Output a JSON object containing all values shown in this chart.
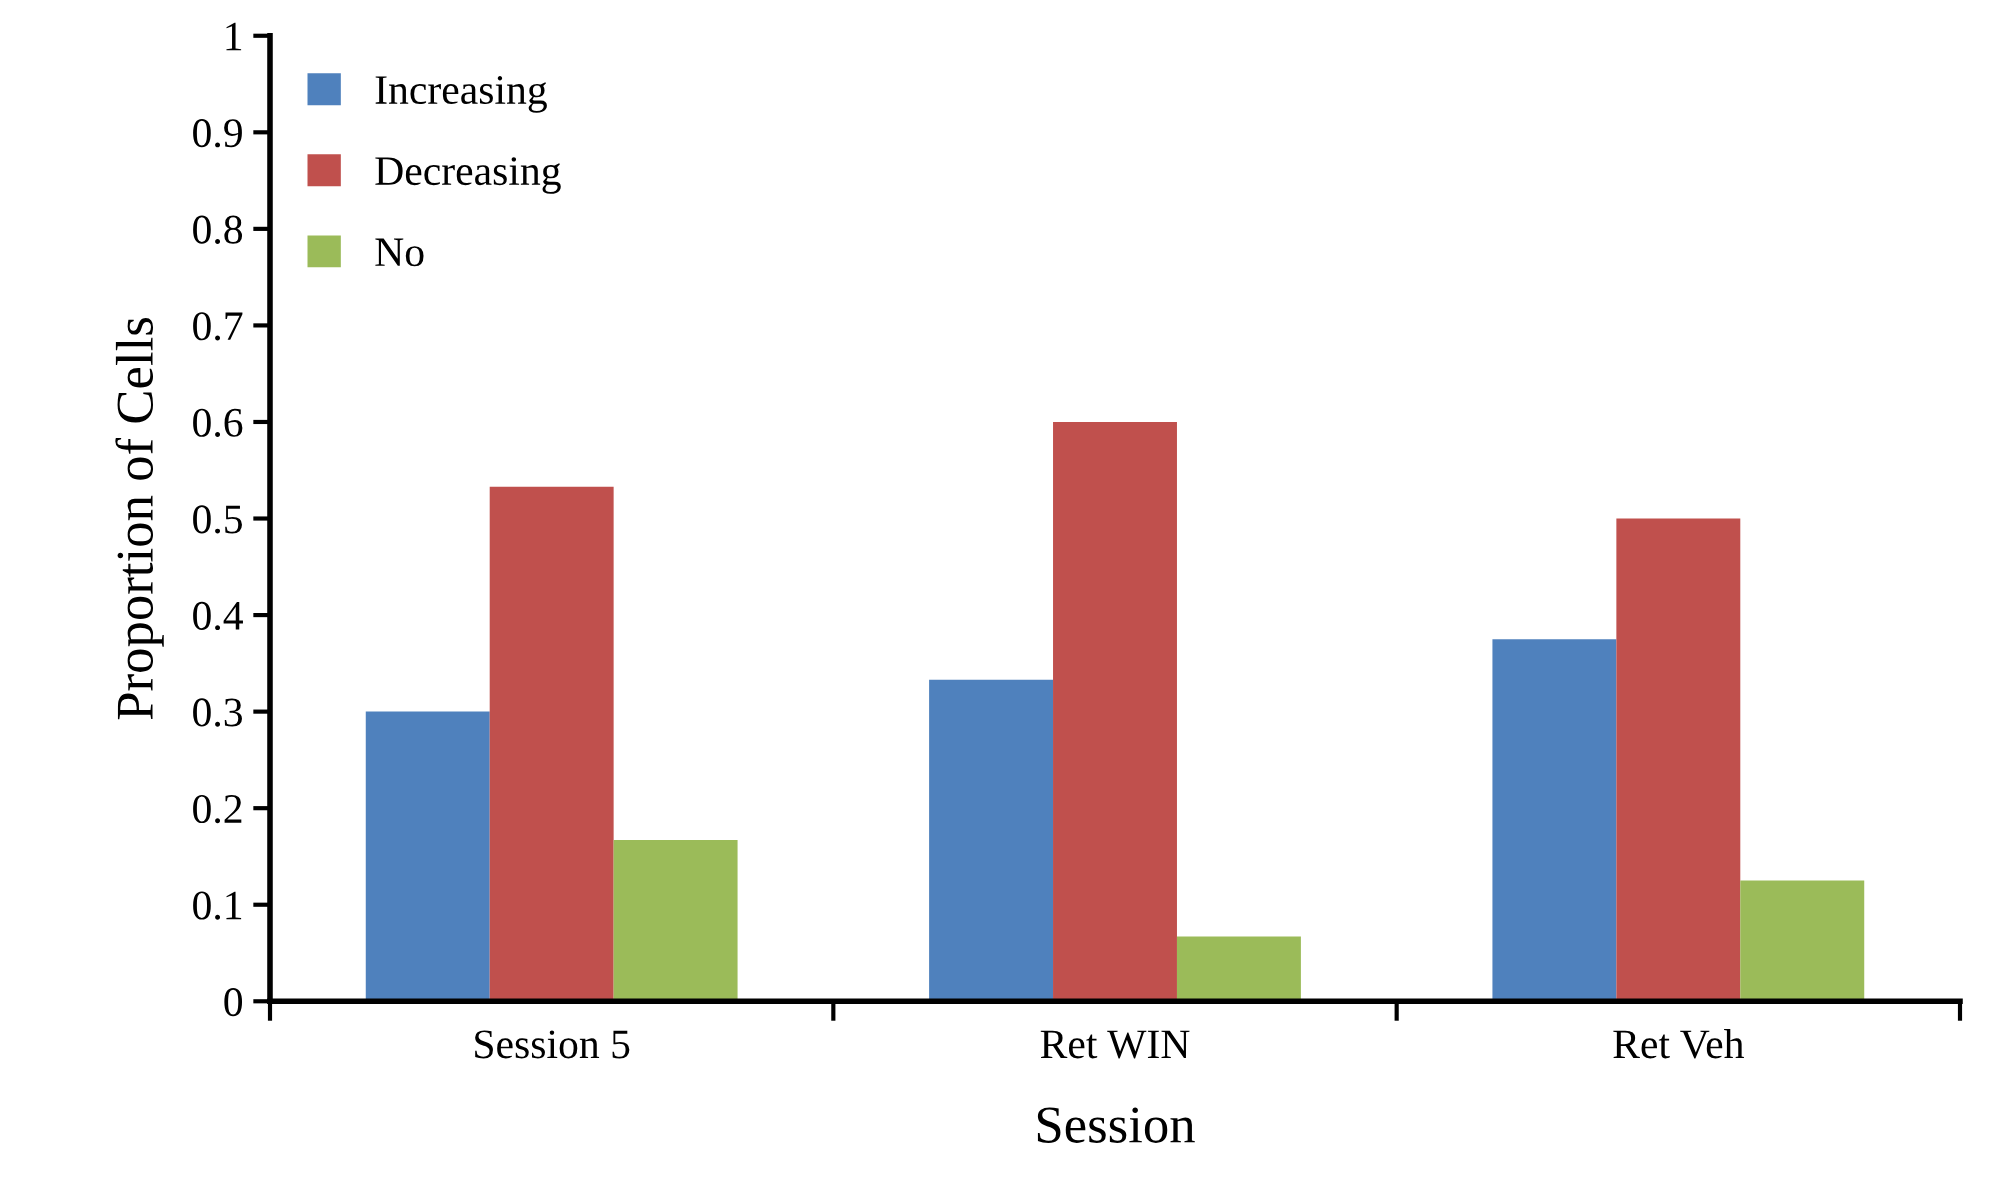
{
  "chart_data": {
    "type": "bar",
    "xlabel": "Session",
    "ylabel": "Proportion of Cells",
    "categories": [
      "Session 5",
      "Ret WIN",
      "Ret Veh"
    ],
    "series": [
      {
        "name": "Increasing",
        "color": "#4f81bd",
        "values": [
          0.3,
          0.333,
          0.375
        ]
      },
      {
        "name": "Decreasing",
        "color": "#c0504d",
        "values": [
          0.533,
          0.6,
          0.5
        ]
      },
      {
        "name": "No",
        "color": "#9bbb59",
        "values": [
          0.167,
          0.067,
          0.125
        ]
      }
    ],
    "ylim": [
      0,
      1
    ],
    "yticks": [
      0,
      0.1,
      0.2,
      0.3,
      0.4,
      0.5,
      0.6,
      0.7,
      0.8,
      0.9,
      1
    ],
    "grid": false,
    "legend": "top left"
  }
}
